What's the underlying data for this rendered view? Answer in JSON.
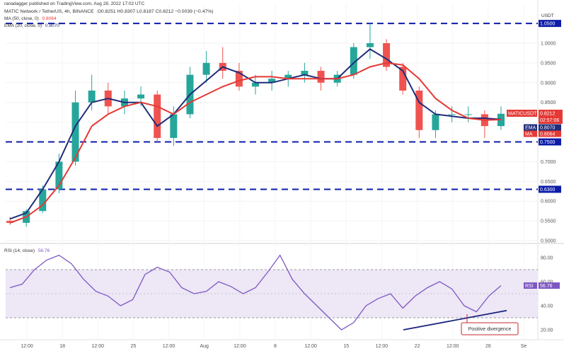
{
  "header": {
    "publisher": "ranadagger published on TradingView.com, Aug 28, 2022 17:02 UTC",
    "symbol_line": "MATIC Network / TetherUS, 4h, BINANCE",
    "ohlc": "O0.8251  H0.8307  L0.8187  C0.8212  −0.0039 (−0.47%)",
    "ma_line": "MA (50, close, 0)",
    "ma_value": "0.8064",
    "ema_line": "EMA (20, close, 0)",
    "ema_value": "0.8070",
    "rsi_label": "RSI (14, close)",
    "rsi_value": "56.76",
    "currency": "USDT"
  },
  "colors": {
    "up": "#26a69a",
    "down": "#ef5350",
    "ema": "#1f2d7a",
    "ma": "#e53935",
    "support": "#0d1da8",
    "rsi": "#7e57c2",
    "rsi_band": "#ede7f6",
    "trendline": "#1a237e",
    "annotation": "#c62828"
  },
  "chart_data": [
    {
      "type": "candlestick",
      "title": "MATIC Network / TetherUS, 4h, BINANCE",
      "y_ticks": [
        "1.0000",
        "0.9500",
        "0.9000",
        "0.8500",
        "0.8000",
        "0.7500",
        "0.7000",
        "0.6500",
        "0.6000",
        "0.5500",
        "0.5000"
      ],
      "ylim": [
        0.5,
        1.07
      ],
      "x_ticks": [
        "12:00",
        "18",
        "12:00",
        "25",
        "12:00",
        "Aug",
        "12:00",
        "8",
        "12:00",
        "15",
        "12:00",
        "22",
        "12:00",
        "26",
        "Se"
      ],
      "horizontal_levels": [
        {
          "label": "1.0500",
          "value": 1.05
        },
        {
          "label": "0.7500",
          "value": 0.75
        },
        {
          "label": "0.6300",
          "value": 0.63
        }
      ],
      "price_tags": [
        {
          "label": "MATICUSDT",
          "value": "0.8212",
          "sub": "02:57:06"
        },
        {
          "label": "EMA",
          "value": "0.8070"
        },
        {
          "label": "MA",
          "value": "0.8064"
        }
      ],
      "series": [
        {
          "name": "EMA (20, close, 0)",
          "values": [
            0.555,
            0.57,
            0.63,
            0.7,
            0.79,
            0.85,
            0.86,
            0.85,
            0.85,
            0.79,
            0.82,
            0.87,
            0.905,
            0.94,
            0.925,
            0.9,
            0.9,
            0.91,
            0.92,
            0.91,
            0.91,
            0.95,
            0.985,
            0.96,
            0.93,
            0.85,
            0.82,
            0.815,
            0.81,
            0.81,
            0.807
          ]
        },
        {
          "name": "MA (50, close, 0)",
          "values": [
            0.545,
            0.56,
            0.59,
            0.64,
            0.71,
            0.79,
            0.82,
            0.84,
            0.85,
            0.84,
            0.82,
            0.85,
            0.87,
            0.89,
            0.905,
            0.915,
            0.915,
            0.91,
            0.91,
            0.91,
            0.91,
            0.92,
            0.94,
            0.95,
            0.945,
            0.91,
            0.86,
            0.83,
            0.81,
            0.805,
            0.8064
          ]
        }
      ],
      "candles": [
        [
          0.55,
          0.56,
          0.54,
          0.545
        ],
        [
          0.545,
          0.58,
          0.535,
          0.575
        ],
        [
          0.575,
          0.64,
          0.57,
          0.63
        ],
        [
          0.63,
          0.72,
          0.62,
          0.7
        ],
        [
          0.7,
          0.88,
          0.69,
          0.85
        ],
        [
          0.85,
          0.92,
          0.83,
          0.88
        ],
        [
          0.88,
          0.9,
          0.82,
          0.84
        ],
        [
          0.84,
          0.88,
          0.82,
          0.86
        ],
        [
          0.86,
          0.89,
          0.84,
          0.87
        ],
        [
          0.87,
          0.88,
          0.75,
          0.76
        ],
        [
          0.76,
          0.84,
          0.74,
          0.82
        ],
        [
          0.82,
          0.94,
          0.81,
          0.92
        ],
        [
          0.92,
          0.98,
          0.9,
          0.95
        ],
        [
          0.95,
          0.99,
          0.91,
          0.93
        ],
        [
          0.93,
          0.95,
          0.88,
          0.89
        ],
        [
          0.89,
          0.92,
          0.87,
          0.9
        ],
        [
          0.9,
          0.93,
          0.88,
          0.91
        ],
        [
          0.91,
          0.93,
          0.89,
          0.92
        ],
        [
          0.92,
          0.95,
          0.9,
          0.93
        ],
        [
          0.93,
          0.94,
          0.88,
          0.9
        ],
        [
          0.9,
          0.93,
          0.89,
          0.92
        ],
        [
          0.92,
          1.0,
          0.91,
          0.99
        ],
        [
          0.99,
          1.05,
          0.96,
          1.0
        ],
        [
          1.0,
          1.01,
          0.93,
          0.94
        ],
        [
          0.94,
          0.95,
          0.87,
          0.88
        ],
        [
          0.88,
          0.89,
          0.76,
          0.78
        ],
        [
          0.78,
          0.83,
          0.76,
          0.82
        ],
        [
          0.82,
          0.84,
          0.8,
          0.82
        ],
        [
          0.82,
          0.84,
          0.8,
          0.82
        ],
        [
          0.82,
          0.83,
          0.76,
          0.79
        ],
        [
          0.79,
          0.84,
          0.78,
          0.8212
        ]
      ]
    },
    {
      "type": "line",
      "title": "RSI (14, close)",
      "y_ticks": [
        "80.00",
        "60.00",
        "40.00",
        "20.00"
      ],
      "ylim": [
        15,
        88
      ],
      "overbought": 70,
      "oversold": 30,
      "highlighted_levels": [
        {
          "label": "60.00",
          "value": 60
        }
      ],
      "rsi_tag": "56.76",
      "series": [
        {
          "name": "RSI (14, close)",
          "values": [
            55,
            58,
            70,
            78,
            82,
            75,
            62,
            52,
            48,
            40,
            45,
            66,
            72,
            68,
            55,
            50,
            52,
            60,
            56,
            50,
            55,
            68,
            82,
            62,
            50,
            40,
            30,
            20,
            26,
            40,
            46,
            50,
            38,
            48,
            55,
            60,
            54,
            40,
            35,
            48,
            56.76
          ]
        }
      ],
      "annotation": "Positive divergence"
    }
  ]
}
